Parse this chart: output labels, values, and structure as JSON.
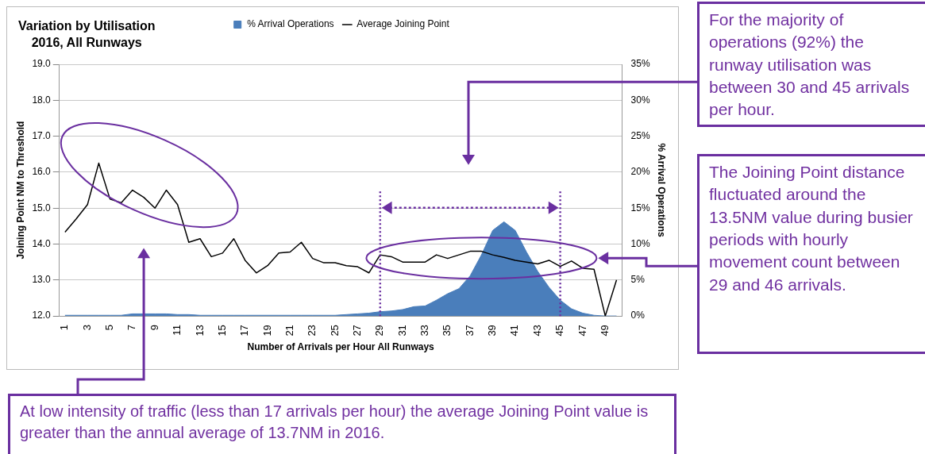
{
  "chart_data": {
    "type": "line",
    "title": "Variation by Utilisation\n2016, All Runways",
    "xlabel": "Number of Arrivals per Hour All Runways",
    "ylabel": "Joining Point NM to Threshold",
    "y2label": "% Arrival Operations",
    "categories": [
      "1",
      null,
      "3",
      null,
      "5",
      null,
      "7",
      null,
      "9",
      null,
      "11",
      null,
      "13",
      null,
      "15",
      null,
      "17",
      null,
      "19",
      null,
      "21",
      null,
      "23",
      null,
      "25",
      null,
      "27",
      null,
      "29",
      null,
      "31",
      null,
      "33",
      null,
      "35",
      null,
      "37",
      null,
      "39",
      null,
      "41",
      null,
      "43",
      null,
      "45",
      null,
      "47",
      null,
      "49",
      null
    ],
    "series": [
      {
        "name": "% Arrival Operations",
        "type": "area",
        "axis": "y2",
        "color": "#4a7ebb",
        "values": [
          0.1,
          0.1,
          0.1,
          0.1,
          0.1,
          0.1,
          0.3,
          0.3,
          0.3,
          0.3,
          0.2,
          0.2,
          0.1,
          0.1,
          0.1,
          0.1,
          0.1,
          0.1,
          0.1,
          0.1,
          0.1,
          0.1,
          0.1,
          0.1,
          0.1,
          0.2,
          0.3,
          0.4,
          0.6,
          0.7,
          0.9,
          1.3,
          1.4,
          2.2,
          3.1,
          3.8,
          5.6,
          8.5,
          11.9,
          13.1,
          11.9,
          8.9,
          6.2,
          4.0,
          2.2,
          1.0,
          0.4,
          0.1,
          0,
          0
        ]
      },
      {
        "name": "Average Joining Point",
        "axis": "y",
        "color": "#000000",
        "values": [
          14.33,
          14.7,
          15.1,
          16.25,
          15.25,
          15.15,
          15.5,
          15.3,
          15.0,
          15.5,
          15.1,
          14.05,
          14.15,
          13.65,
          13.75,
          14.15,
          13.55,
          13.2,
          13.4,
          13.75,
          13.78,
          14.05,
          13.6,
          13.48,
          13.48,
          13.4,
          13.37,
          13.2,
          13.7,
          13.65,
          13.5,
          13.5,
          13.5,
          13.7,
          13.6,
          13.7,
          13.8,
          13.8,
          13.7,
          13.63,
          13.55,
          13.5,
          13.45,
          13.55,
          13.38,
          13.53,
          13.33,
          13.3,
          12.0,
          13.0
        ]
      }
    ],
    "ylim": [
      12,
      19
    ],
    "yticks": [
      {
        "value": 12,
        "label": "12.0"
      },
      {
        "value": 13,
        "label": "13.0"
      },
      {
        "value": 14,
        "label": "14.0"
      },
      {
        "value": 15,
        "label": "15.0"
      },
      {
        "value": 16,
        "label": "16.0"
      },
      {
        "value": 17,
        "label": "17.0"
      },
      {
        "value": 18,
        "label": "18.0"
      },
      {
        "value": 19,
        "label": "19.0"
      }
    ],
    "y2lim": [
      0,
      35
    ],
    "y2ticks": [
      {
        "value": 0,
        "label": "0%"
      },
      {
        "value": 5,
        "label": "5%"
      },
      {
        "value": 10,
        "label": "10%"
      },
      {
        "value": 15,
        "label": "15%"
      },
      {
        "value": 20,
        "label": "20%"
      },
      {
        "value": 25,
        "label": "25%"
      },
      {
        "value": 30,
        "label": "30%"
      },
      {
        "value": 35,
        "label": "35%"
      }
    ],
    "ref_lines": [
      {
        "axis": "x",
        "value": "29",
        "color": "#6a2fa0",
        "line_style": "dotted"
      },
      {
        "axis": "x",
        "value": "45",
        "color": "#6a2fa0",
        "line_style": "dotted"
      }
    ],
    "grid": "y",
    "legend": "top",
    "marker": "none",
    "annotations": [
      "For the majority of operations (92%) the runway utilisation was between 30 and 45 arrivals per hour.",
      "The Joining Point distance fluctuated around the 13.5NM value during busier periods with hourly movement count between 29 and 46 arrivals.",
      "At low intensity of traffic (less than 17 arrivals per hour) the average Joining Point value is greater than the annual average of 13.7NM in 2016."
    ]
  }
}
